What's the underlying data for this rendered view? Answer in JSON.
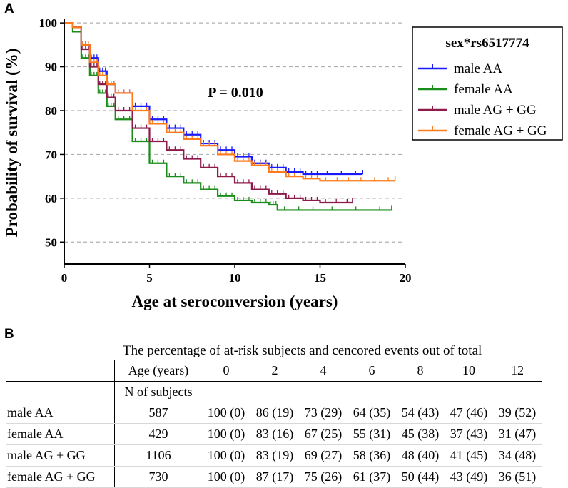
{
  "panels": {
    "a": "A",
    "b": "B"
  },
  "chart_data": {
    "type": "line",
    "title": "",
    "annotation": "P = 0.010",
    "xlabel": "Age at seroconversion (years)",
    "ylabel": "Probability of survival (%)",
    "xlim": [
      0,
      20
    ],
    "ylim": [
      45,
      101
    ],
    "xticks": [
      0,
      5,
      10,
      15,
      20
    ],
    "yticks": [
      50,
      60,
      70,
      80,
      90,
      100
    ],
    "grid": "horizontal dashed",
    "legend": {
      "title": "sex*rs6517774",
      "placement": "right"
    },
    "series": [
      {
        "name": "male AA",
        "color": "#1a1aff",
        "x": [
          0,
          0.5,
          1,
          1.5,
          2,
          2.5,
          3,
          4,
          5,
          6,
          7,
          8,
          9,
          10,
          11,
          12,
          13,
          14,
          15,
          17.5
        ],
        "y": [
          100,
          99,
          95,
          92,
          89,
          86,
          84,
          81,
          78,
          76,
          74.5,
          72.5,
          71,
          69.5,
          68,
          67,
          66,
          65.5,
          65.5,
          65.5
        ]
      },
      {
        "name": "female AA",
        "color": "#1a8c1a",
        "x": [
          0,
          0.5,
          1,
          1.5,
          2,
          2.5,
          3,
          4,
          5,
          6,
          7,
          8,
          9,
          10,
          11,
          12,
          12.5,
          15,
          19.2
        ],
        "y": [
          100,
          98,
          92,
          88,
          84,
          81,
          78,
          73,
          68,
          65,
          63.5,
          62,
          60.5,
          59.5,
          59,
          58.5,
          57.3,
          57.3,
          57.3
        ]
      },
      {
        "name": "male AG + GG",
        "color": "#8c1a4a",
        "x": [
          0,
          0.5,
          1,
          1.5,
          2,
          2.5,
          3,
          4,
          5,
          6,
          7,
          8,
          9,
          10,
          11,
          12,
          13,
          14,
          15,
          16.9
        ],
        "y": [
          100,
          99,
          94,
          90,
          86,
          83,
          80,
          76,
          73,
          71,
          69,
          67,
          65,
          63.5,
          62,
          61,
          60,
          59.5,
          59,
          59
        ]
      },
      {
        "name": "female AG + GG",
        "color": "#ff7a1a",
        "x": [
          0,
          0.5,
          1,
          1.5,
          2,
          2.5,
          3,
          4,
          5,
          6,
          7,
          8,
          9,
          10,
          11,
          12,
          13,
          14,
          15,
          17,
          19.4
        ],
        "y": [
          100,
          99,
          95,
          91,
          88,
          86,
          84,
          80,
          77,
          75,
          73.5,
          72,
          70,
          68.5,
          67.5,
          66,
          65,
          64.5,
          64,
          64,
          64
        ]
      }
    ]
  },
  "risk_table": {
    "caption": "The percentage of at-risk subjects and cencored events out of total",
    "age_header": "Age (years)",
    "n_header": "N of subjects",
    "time_points": [
      "0",
      "2",
      "4",
      "6",
      "8",
      "10",
      "12"
    ],
    "rows": [
      {
        "label": "male AA",
        "n": "587",
        "values": [
          "100 (0)",
          "86 (19)",
          "73 (29)",
          "64 (35)",
          "54 (43)",
          "47 (46)",
          "39 (52)"
        ]
      },
      {
        "label": "female AA",
        "n": "429",
        "values": [
          "100 (0)",
          "83 (16)",
          "67 (25)",
          "55 (31)",
          "45 (38)",
          "37 (43)",
          "31 (47)"
        ]
      },
      {
        "label": "male AG + GG",
        "n": "1106",
        "values": [
          "100 (0)",
          "83 (19)",
          "69 (27)",
          "58 (36)",
          "48 (40)",
          "41 (45)",
          "34 (48)"
        ]
      },
      {
        "label": "female AG + GG",
        "n": "730",
        "values": [
          "100 (0)",
          "87 (17)",
          "75 (26)",
          "61 (37)",
          "50 (44)",
          "43 (49)",
          "36 (51)"
        ]
      }
    ]
  }
}
